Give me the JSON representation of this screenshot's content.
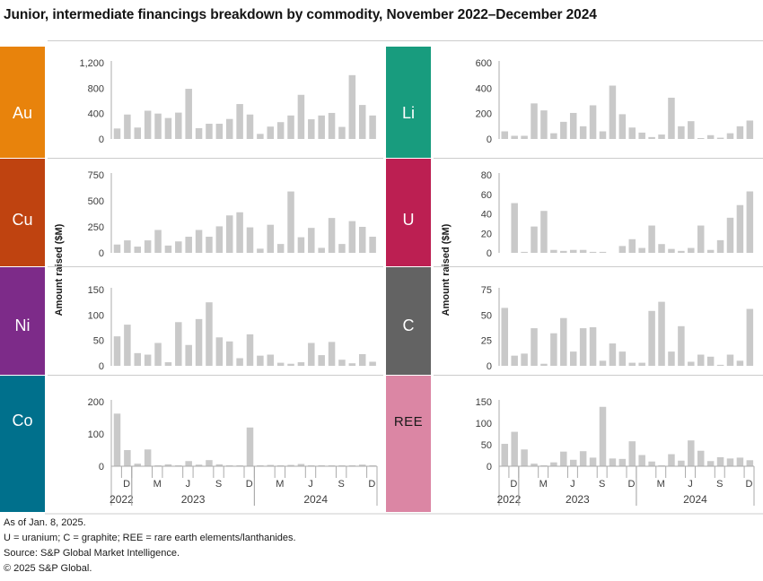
{
  "title": "Junior, intermediate financings breakdown by commodity, November 2022–December 2024",
  "footnotes": [
    "As of Jan. 8, 2025.",
    "U = uranium; C = graphite; REE = rare earth elements/lanthanides.",
    "Source: S&P Global Market Intelligence.",
    "© 2025 S&P Global."
  ],
  "colors": {
    "bar": "#c9c9c9",
    "axis_line": "#ababab",
    "rule_line": "#cccccc",
    "tick_text": "#3c3c3c",
    "title_text": "#141414"
  },
  "chart_data": {
    "type": "bar",
    "ylabel": "Amount raised ($M)",
    "categories": [
      "Nov 2022",
      "Dec 2022",
      "Jan 2023",
      "Feb 2023",
      "Mar 2023",
      "Apr 2023",
      "May 2023",
      "Jun 2023",
      "Jul 2023",
      "Aug 2023",
      "Sep 2023",
      "Oct 2023",
      "Nov 2023",
      "Dec 2023",
      "Jan 2024",
      "Feb 2024",
      "Mar 2024",
      "Apr 2024",
      "May 2024",
      "Jun 2024",
      "Jul 2024",
      "Aug 2024",
      "Sep 2024",
      "Oct 2024",
      "Nov 2024",
      "Dec 2024"
    ],
    "n_slots": 26,
    "x_axis": {
      "month_labels": [
        {
          "slot": 2,
          "label": "D"
        },
        {
          "slot": 5,
          "label": "M"
        },
        {
          "slot": 8,
          "label": "J"
        },
        {
          "slot": 11,
          "label": "S"
        },
        {
          "slot": 14,
          "label": "D"
        },
        {
          "slot": 17,
          "label": "M"
        },
        {
          "slot": 20,
          "label": "J"
        },
        {
          "slot": 23,
          "label": "S"
        },
        {
          "slot": 26,
          "label": "D"
        }
      ],
      "year_labels": [
        {
          "label": "2022",
          "from_slot": 1,
          "to_slot": 2
        },
        {
          "label": "2023",
          "from_slot": 3,
          "to_slot": 14
        },
        {
          "label": "2024",
          "from_slot": 15,
          "to_slot": 26
        }
      ]
    },
    "panels": [
      {
        "commodity": "Au",
        "name": "gold",
        "column": "left",
        "row": 0,
        "label_bg": "#e8830c",
        "label_text": "#ffffff",
        "ylim": [
          0,
          1200
        ],
        "yticks": [
          0,
          400,
          800,
          1200
        ],
        "values": [
          165,
          385,
          180,
          445,
          400,
          330,
          415,
          790,
          170,
          240,
          240,
          315,
          550,
          385,
          80,
          195,
          265,
          370,
          695,
          310,
          370,
          410,
          190,
          1005,
          535,
          370
        ]
      },
      {
        "commodity": "Cu",
        "name": "copper",
        "column": "left",
        "row": 1,
        "label_bg": "#bf4310",
        "label_text": "#ffffff",
        "ylim": [
          0,
          750
        ],
        "yticks": [
          0,
          250,
          500,
          750
        ],
        "values": [
          80,
          120,
          60,
          120,
          220,
          70,
          110,
          155,
          220,
          155,
          255,
          360,
          390,
          245,
          40,
          270,
          85,
          590,
          150,
          240,
          48,
          335,
          85,
          305,
          250,
          155
        ]
      },
      {
        "commodity": "Ni",
        "name": "nickel",
        "column": "left",
        "row": 2,
        "label_bg": "#7d2b89",
        "label_text": "#ffffff",
        "ylim": [
          0,
          150
        ],
        "yticks": [
          0,
          50,
          100,
          150
        ],
        "values": [
          58,
          81,
          25,
          22,
          45,
          7,
          86,
          41,
          92,
          125,
          56,
          48,
          15,
          62,
          20,
          22,
          6,
          4,
          7,
          45,
          21,
          47,
          12,
          5,
          23,
          8
        ]
      },
      {
        "commodity": "Co",
        "name": "cobalt",
        "column": "left",
        "row": 3,
        "label_bg": "#00708c",
        "label_text": "#ffffff",
        "ylim": [
          0,
          200
        ],
        "yticks": [
          0,
          100,
          200
        ],
        "values": [
          163,
          50,
          8,
          52,
          2,
          6,
          2,
          16,
          5,
          19,
          6,
          2,
          2,
          120,
          2,
          4,
          2,
          4,
          7,
          2,
          3,
          2,
          2,
          2,
          5,
          2
        ]
      },
      {
        "commodity": "Li",
        "name": "lithium",
        "column": "right",
        "row": 0,
        "label_bg": "#189c7e",
        "label_text": "#ffffff",
        "ylim": [
          0,
          600
        ],
        "yticks": [
          0,
          200,
          400,
          600
        ],
        "values": [
          60,
          25,
          25,
          280,
          225,
          45,
          135,
          205,
          100,
          265,
          60,
          420,
          195,
          90,
          50,
          15,
          35,
          325,
          100,
          140,
          5,
          30,
          10,
          45,
          100,
          145
        ]
      },
      {
        "commodity": "U",
        "name": "uranium",
        "column": "right",
        "row": 1,
        "label_bg": "#bc1f52",
        "label_text": "#ffffff",
        "ylim": [
          0,
          80
        ],
        "yticks": [
          0,
          20,
          40,
          60,
          80
        ],
        "values": [
          0,
          51,
          1,
          27,
          43,
          3,
          2,
          3,
          3,
          1,
          1,
          0,
          7,
          14,
          5,
          28,
          9,
          4,
          2,
          5,
          28,
          3,
          13,
          36,
          49,
          63
        ]
      },
      {
        "commodity": "C",
        "name": "graphite",
        "column": "right",
        "row": 2,
        "label_bg": "#636363",
        "label_text": "#ffffff",
        "ylim": [
          0,
          75
        ],
        "yticks": [
          0,
          25,
          50,
          75
        ],
        "values": [
          57,
          10,
          12,
          37,
          2,
          32,
          47,
          14,
          37,
          38,
          5,
          22,
          14,
          3,
          3,
          54,
          63,
          14,
          39,
          4,
          11,
          9,
          1,
          11,
          5,
          56
        ]
      },
      {
        "commodity": "REE",
        "name": "rare-earth-elements",
        "column": "right",
        "row": 3,
        "label_bg": "#db86a4",
        "label_text": "#1a1a1a",
        "ylim": [
          0,
          150
        ],
        "yticks": [
          0,
          50,
          100,
          150
        ],
        "values": [
          52,
          80,
          39,
          6,
          2,
          9,
          34,
          15,
          35,
          20,
          138,
          18,
          17,
          58,
          26,
          11,
          2,
          28,
          13,
          60,
          36,
          12,
          21,
          18,
          20,
          14
        ]
      }
    ]
  }
}
